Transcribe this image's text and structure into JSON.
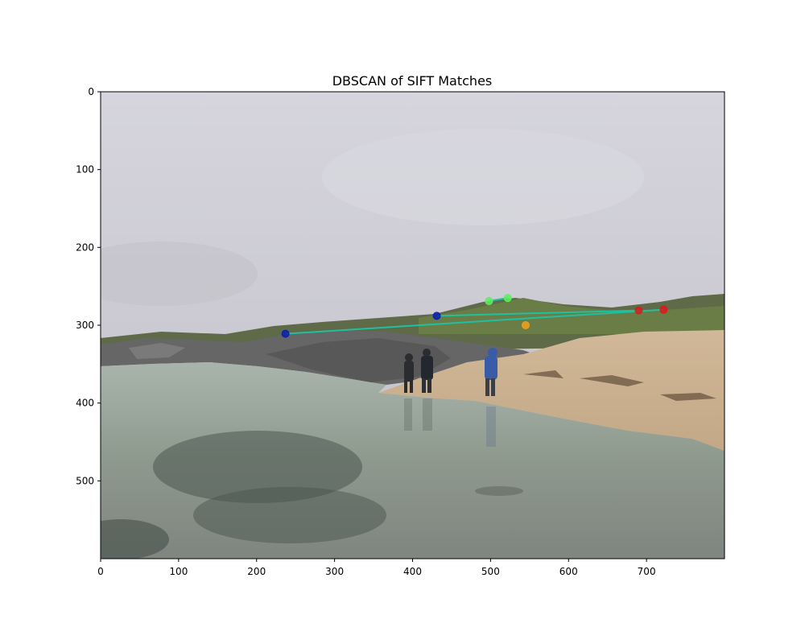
{
  "chart_data": {
    "type": "scatter",
    "title": "DBSCAN of SIFT Matches",
    "xlabel": "",
    "ylabel": "",
    "xlim": [
      0,
      800
    ],
    "ylim": [
      600,
      0
    ],
    "x_ticks": [
      "0",
      "100",
      "200",
      "300",
      "400",
      "500",
      "600",
      "700"
    ],
    "y_ticks": [
      "0",
      "100",
      "200",
      "300",
      "400",
      "500"
    ],
    "x_tick_values": [
      0,
      100,
      200,
      300,
      400,
      500,
      600,
      700
    ],
    "y_tick_values": [
      0,
      100,
      200,
      300,
      400,
      500
    ],
    "grid": false,
    "background": "beach-photo",
    "clusters": [
      {
        "color": "#0a1fa8",
        "points": [
          [
            237,
            311
          ],
          [
            431,
            288
          ]
        ]
      },
      {
        "color": "#5cf05c",
        "points": [
          [
            498,
            269
          ],
          [
            522,
            265
          ]
        ]
      },
      {
        "color": "#d81b1b",
        "points": [
          [
            690,
            281
          ],
          [
            722,
            280
          ]
        ]
      },
      {
        "color": "#f0a020",
        "points": [
          [
            545,
            300
          ]
        ]
      }
    ],
    "match_lines": [
      {
        "color": "#1fc0a0",
        "from": [
          237,
          311
        ],
        "to": [
          722,
          280
        ]
      },
      {
        "color": "#1fc0a0",
        "from": [
          431,
          288
        ],
        "to": [
          690,
          281
        ]
      },
      {
        "color": "#1fc0a0",
        "from": [
          498,
          269
        ],
        "to": [
          522,
          265
        ]
      }
    ]
  }
}
